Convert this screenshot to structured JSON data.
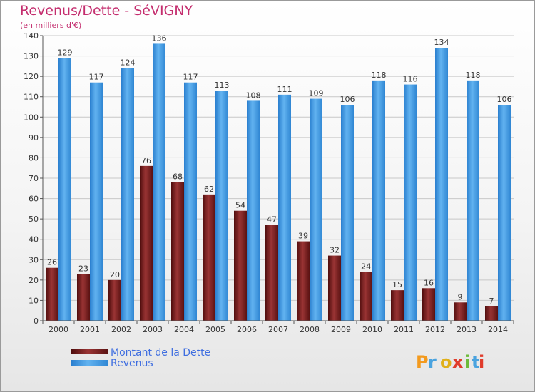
{
  "chart_data": {
    "type": "bar",
    "title": "Revenus/Dette - SéVIGNY",
    "subtitle": "(en milliers d'€)",
    "categories": [
      "2000",
      "2001",
      "2002",
      "2003",
      "2004",
      "2005",
      "2006",
      "2007",
      "2008",
      "2009",
      "2010",
      "2011",
      "2012",
      "2013",
      "2014"
    ],
    "series": [
      {
        "name": "Montant de la Dette",
        "color": "#7a1c1c",
        "values": [
          26,
          23,
          20,
          76,
          68,
          62,
          54,
          47,
          39,
          32,
          24,
          15,
          16,
          9,
          7
        ]
      },
      {
        "name": "Revenus",
        "color": "#3a96e2",
        "values": [
          129,
          117,
          124,
          136,
          117,
          113,
          108,
          111,
          109,
          106,
          118,
          116,
          134,
          118,
          106
        ]
      }
    ],
    "ylim": [
      0,
      140
    ],
    "yticks": [
      0,
      10,
      20,
      30,
      40,
      50,
      60,
      70,
      80,
      90,
      100,
      110,
      120,
      130,
      140
    ],
    "grid": true,
    "legend_position": "bottom-left",
    "xlabel": "",
    "ylabel": ""
  },
  "logo": {
    "text": "Proxiti"
  }
}
